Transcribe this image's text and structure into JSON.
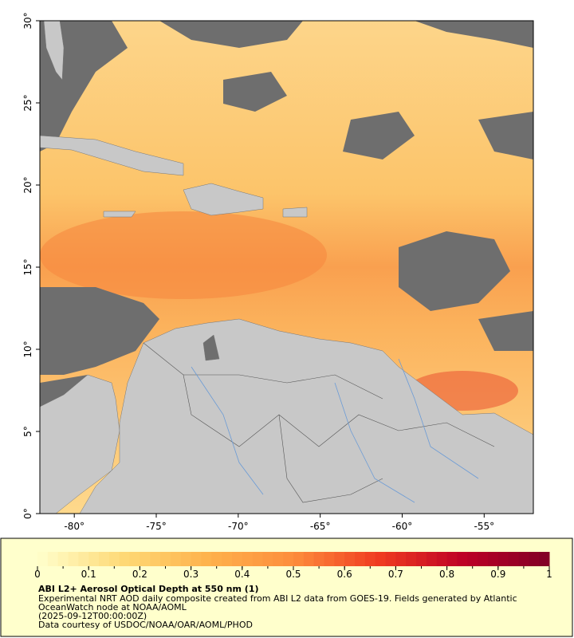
{
  "map": {
    "xlim": [
      -82.1,
      -52.0
    ],
    "ylim": [
      0,
      30
    ],
    "xticks": [
      {
        "value": -80,
        "label": "-80°"
      },
      {
        "value": -75,
        "label": "-75°"
      },
      {
        "value": -70,
        "label": "-70°"
      },
      {
        "value": -65,
        "label": "-65°"
      },
      {
        "value": -60,
        "label": "-60°"
      },
      {
        "value": -55,
        "label": "-55°"
      }
    ],
    "yticks": [
      {
        "value": 0,
        "label": "0°"
      },
      {
        "value": 5,
        "label": "5°"
      },
      {
        "value": 10,
        "label": "10°"
      },
      {
        "value": 15,
        "label": "15°"
      },
      {
        "value": 20,
        "label": "20°"
      },
      {
        "value": 25,
        "label": "25°"
      },
      {
        "value": 30,
        "label": "30°"
      }
    ]
  },
  "colorbar": {
    "lim": [
      0,
      1
    ],
    "ticks": [
      0,
      0.1,
      0.2,
      0.3,
      0.4,
      0.5,
      0.6,
      0.7,
      0.8,
      0.9,
      1
    ],
    "colors": [
      "#ffffcc",
      "#fed976",
      "#feb24c",
      "#fd8d3c",
      "#f03b20",
      "#bd0026",
      "#800026"
    ]
  },
  "caption": {
    "title": "ABI L2+ Aerosol Optical Depth at 550 nm (1)",
    "lines": [
      "Experimental NRT AOD daily composite created from ABI L2 data from GOES-19. Fields generated by Atlantic",
      "OceanWatch node at NOAA/AOML",
      "(2025-09-12T00:00:00Z)",
      "Data courtesy of USDOC/NOAA/OAR/AOML/PHOD"
    ]
  }
}
